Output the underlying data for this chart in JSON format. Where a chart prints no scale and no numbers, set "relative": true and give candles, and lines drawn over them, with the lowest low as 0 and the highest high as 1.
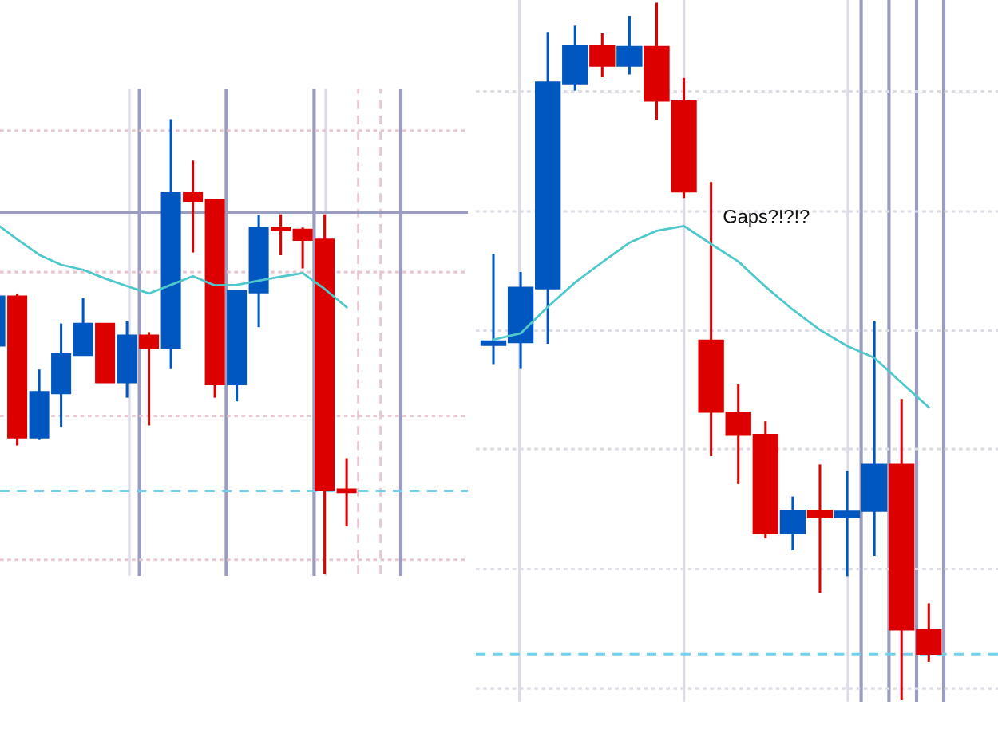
{
  "chart_data": [
    {
      "type": "candlestick",
      "relative": true,
      "tick_labels": false,
      "categories": [
        null,
        null,
        null,
        null,
        null,
        null,
        null,
        null,
        null,
        null,
        null,
        null,
        null,
        null,
        null,
        null,
        null
      ],
      "ohlc": [
        [
          0.502,
          0.611,
          0.502,
          0.611
        ],
        [
          0.611,
          0.617,
          0.283,
          0.3
        ],
        [
          0.3,
          0.45,
          0.295,
          0.401
        ],
        [
          0.397,
          0.551,
          0.324,
          0.484
        ],
        [
          0.481,
          0.607,
          0.481,
          0.551
        ],
        [
          0.551,
          0.551,
          0.421,
          0.421
        ],
        [
          0.421,
          0.556,
          0.388,
          0.525
        ],
        [
          0.525,
          0.532,
          0.327,
          0.497
        ],
        [
          0.497,
          1.0,
          0.451,
          0.838
        ],
        [
          0.838,
          0.909,
          0.707,
          0.82
        ],
        [
          0.823,
          0.823,
          0.388,
          0.417
        ],
        [
          0.417,
          0.623,
          0.38,
          0.623
        ],
        [
          0.619,
          0.789,
          0.543,
          0.762
        ],
        [
          0.762,
          0.791,
          0.701,
          0.756
        ],
        [
          0.758,
          0.762,
          0.672,
          0.734
        ],
        [
          0.736,
          0.791,
          0.0,
          0.185
        ],
        [
          0.187,
          0.255,
          0.105,
          0.18
        ]
      ],
      "colors": [
        "#0057c0",
        "#dd0000",
        "#0057c0",
        "#0057c0",
        "#0057c0",
        "#dd0000",
        "#0057c0",
        "#dd0000",
        "#0057c0",
        "#dd0000",
        "#dd0000",
        "#0057c0",
        "#0057c0",
        "#dd0000",
        "#dd0000",
        "#dd0000",
        "#dd0000"
      ],
      "series": [
        {
          "type": "line",
          "color": "#4fc8cc",
          "values": [
            0.772,
            0.736,
            0.702,
            0.68,
            0.669,
            0.65,
            0.633,
            0.617,
            0.636,
            0.655,
            0.635,
            0.636,
            0.645,
            0.654,
            0.662,
            0.627,
            0.587
          ]
        }
      ],
      "ref_lines": [
        {
          "axis": "y",
          "value": 0.975,
          "color": "#e8c6cf",
          "line_style": "dotted"
        },
        {
          "axis": "y",
          "value": 0.664,
          "color": "#e8c6cf",
          "line_style": "dotted"
        },
        {
          "axis": "y",
          "value": 0.348,
          "color": "#e8c6cf",
          "line_style": "dotted"
        },
        {
          "axis": "y",
          "value": 0.032,
          "color": "#e8c6cf",
          "line_style": "dotted"
        },
        {
          "axis": "y",
          "value": 0.795,
          "color": "#9a9cc0",
          "line_style": "solid"
        },
        {
          "axis": "y",
          "value": 0.183,
          "color": "#6fd0f0",
          "line_style": "dashed"
        }
      ]
    },
    {
      "type": "candlestick",
      "relative": true,
      "tick_labels": false,
      "grid": "x",
      "categories": [
        null,
        null,
        null,
        null,
        null,
        null,
        null,
        null,
        null,
        null,
        null,
        null,
        null,
        null,
        null,
        null,
        null
      ],
      "ohlc": [
        [
          0.509,
          0.64,
          0.482,
          0.515
        ],
        [
          0.513,
          0.614,
          0.475,
          0.592
        ],
        [
          0.59,
          0.958,
          0.511,
          0.886
        ],
        [
          0.884,
          0.968,
          0.874,
          0.939
        ],
        [
          0.939,
          0.956,
          0.893,
          0.909
        ],
        [
          0.909,
          0.981,
          0.897,
          0.937
        ],
        [
          0.937,
          1.0,
          0.832,
          0.859
        ],
        [
          0.859,
          0.892,
          0.72,
          0.729
        ],
        [
          0.516,
          0.743,
          0.35,
          0.413
        ],
        [
          0.413,
          0.453,
          0.31,
          0.38
        ],
        [
          0.381,
          0.4,
          0.232,
          0.239
        ],
        [
          0.239,
          0.292,
          0.215,
          0.272
        ],
        [
          0.272,
          0.338,
          0.154,
          0.262
        ],
        [
          0.262,
          0.329,
          0.178,
          0.271
        ],
        [
          0.271,
          0.543,
          0.207,
          0.338
        ],
        [
          0.338,
          0.432,
          0.0,
          0.101
        ],
        [
          0.101,
          0.139,
          0.055,
          0.066
        ]
      ],
      "colors": [
        "#0057c0",
        "#0057c0",
        "#0057c0",
        "#0057c0",
        "#dd0000",
        "#0057c0",
        "#dd0000",
        "#dd0000",
        "#dd0000",
        "#dd0000",
        "#dd0000",
        "#0057c0",
        "#dd0000",
        "#0057c0",
        "#0057c0",
        "#dd0000",
        "#dd0000"
      ],
      "series": [
        {
          "type": "line",
          "color": "#4fc8cc",
          "values": [
            0.517,
            0.526,
            0.564,
            0.599,
            0.628,
            0.656,
            0.673,
            0.68,
            0.654,
            0.629,
            0.593,
            0.56,
            0.531,
            0.508,
            0.491,
            0.455,
            0.42
          ]
        }
      ],
      "ref_lines": [
        {
          "axis": "y",
          "value": 0.873,
          "color": "#dcdce4",
          "line_style": "dotted"
        },
        {
          "axis": "y",
          "value": 0.701,
          "color": "#dcdce4",
          "line_style": "dotted"
        },
        {
          "axis": "y",
          "value": 0.53,
          "color": "#dcdce4",
          "line_style": "dotted"
        },
        {
          "axis": "y",
          "value": 0.36,
          "color": "#dcdce4",
          "line_style": "dotted"
        },
        {
          "axis": "y",
          "value": 0.188,
          "color": "#dcdce4",
          "line_style": "dotted"
        },
        {
          "axis": "y",
          "value": 0.017,
          "color": "#dcdce4",
          "line_style": "dotted"
        },
        {
          "axis": "y",
          "value": 0.066,
          "color": "#6fd0f0",
          "line_style": "dashed"
        }
      ],
      "annotations": [
        "Gaps?!?!?"
      ]
    }
  ]
}
